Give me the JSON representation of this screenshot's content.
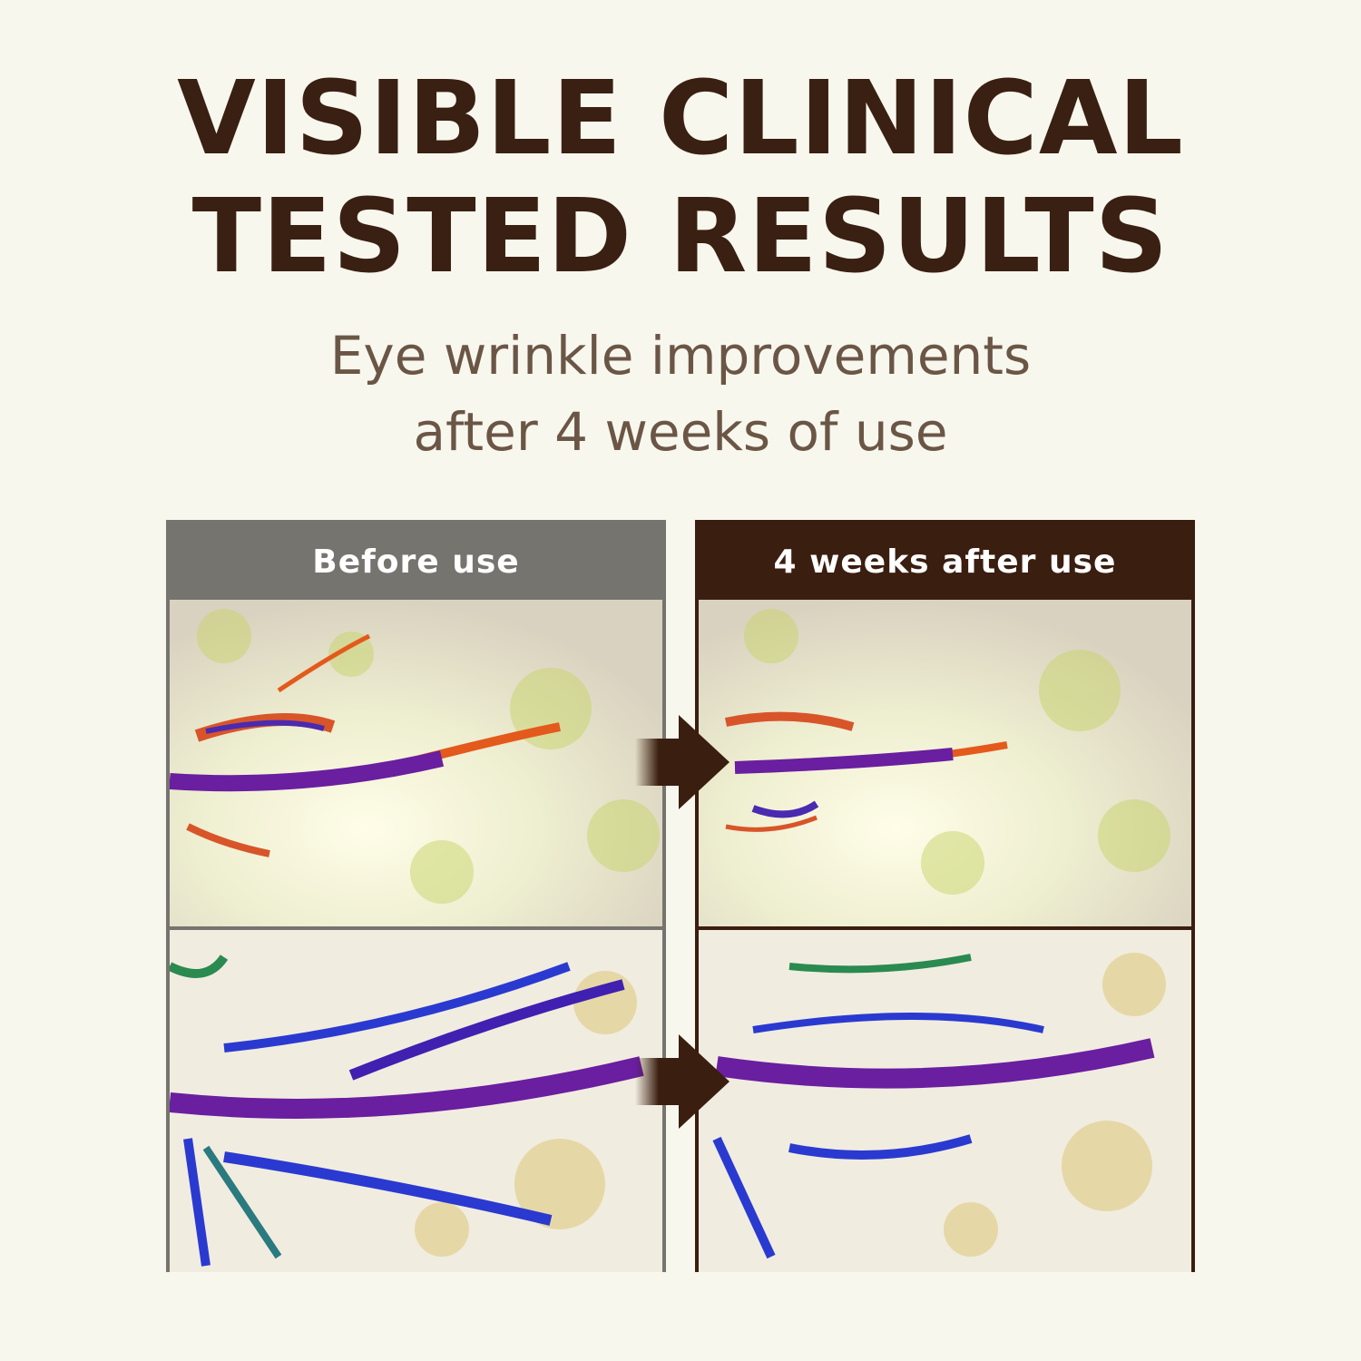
{
  "heading": {
    "line1": "VISIBLE CLINICAL",
    "line2": "TESTED RESULTS"
  },
  "subheading": {
    "line1": "Eye wrinkle improvements",
    "line2": "after 4 weeks of use"
  },
  "panels": {
    "before": {
      "label": "Before use",
      "color": "#76746f"
    },
    "after": {
      "label": "4 weeks after use",
      "color": "#3a1e10"
    }
  },
  "colors": {
    "background": "#f8f7ee",
    "heading": "#3a2012",
    "subheading": "#6b5646"
  }
}
